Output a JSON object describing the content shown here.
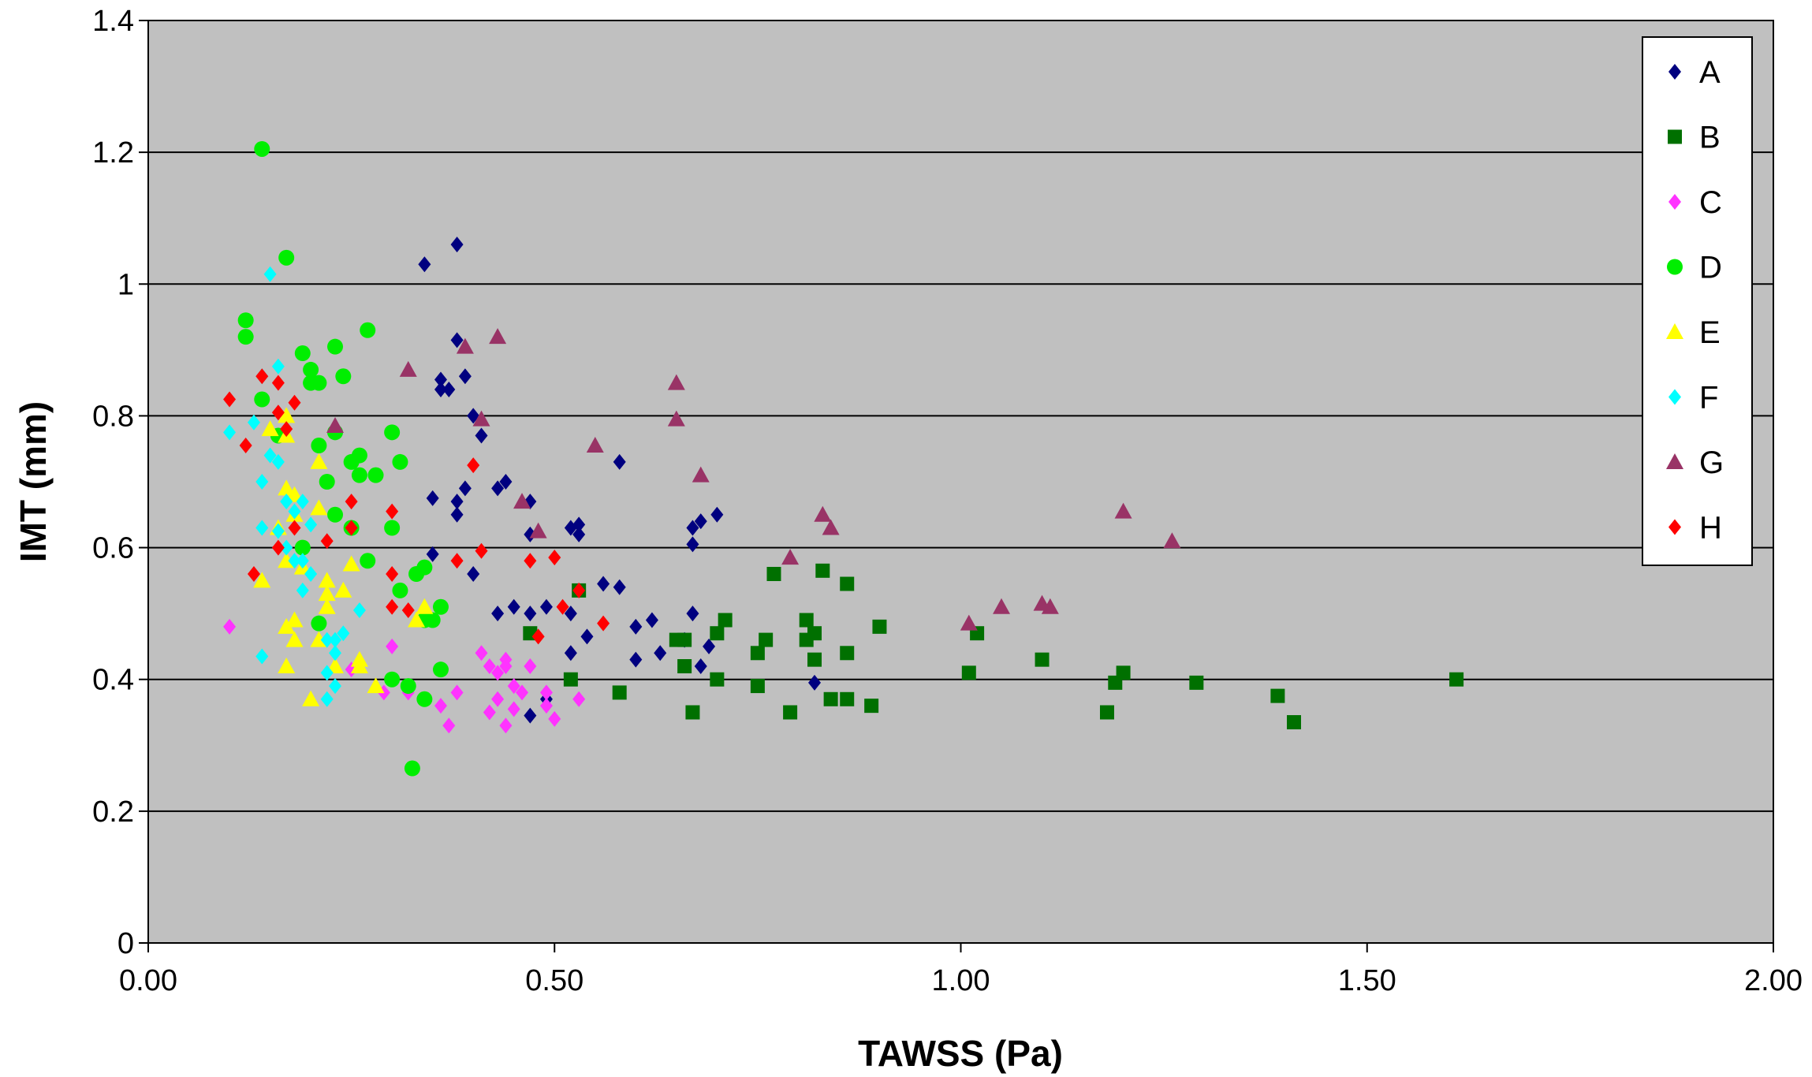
{
  "chart_data": {
    "type": "scatter",
    "title": "",
    "xlabel": "TAWSS (Pa)",
    "ylabel": "IMT (mm)",
    "xlim": [
      0,
      2
    ],
    "ylim": [
      0,
      1.4
    ],
    "x_ticks": [
      "0.00",
      "0.50",
      "1.00",
      "1.50",
      "2.00"
    ],
    "y_ticks": [
      "0",
      "0.2",
      "0.4",
      "0.6",
      "0.8",
      "1",
      "1.2",
      "1.4"
    ],
    "grid": "horizontal",
    "plot_background": "#c0c0c0",
    "legend_position": "top-right",
    "series": [
      {
        "name": "A",
        "color": "#000080",
        "marker": "diamond",
        "points": [
          [
            0.34,
            1.03
          ],
          [
            0.38,
            1.06
          ],
          [
            0.38,
            0.915
          ],
          [
            0.39,
            0.86
          ],
          [
            0.36,
            0.855
          ],
          [
            0.36,
            0.84
          ],
          [
            0.37,
            0.84
          ],
          [
            0.4,
            0.8
          ],
          [
            0.41,
            0.77
          ],
          [
            0.39,
            0.69
          ],
          [
            0.38,
            0.67
          ],
          [
            0.38,
            0.65
          ],
          [
            0.35,
            0.675
          ],
          [
            0.43,
            0.69
          ],
          [
            0.44,
            0.7
          ],
          [
            0.47,
            0.67
          ],
          [
            0.47,
            0.62
          ],
          [
            0.35,
            0.59
          ],
          [
            0.4,
            0.56
          ],
          [
            0.43,
            0.5
          ],
          [
            0.45,
            0.51
          ],
          [
            0.47,
            0.5
          ],
          [
            0.49,
            0.51
          ],
          [
            0.52,
            0.5
          ],
          [
            0.52,
            0.63
          ],
          [
            0.53,
            0.62
          ],
          [
            0.53,
            0.635
          ],
          [
            0.52,
            0.44
          ],
          [
            0.54,
            0.465
          ],
          [
            0.56,
            0.545
          ],
          [
            0.58,
            0.54
          ],
          [
            0.58,
            0.73
          ],
          [
            0.6,
            0.48
          ],
          [
            0.6,
            0.43
          ],
          [
            0.62,
            0.49
          ],
          [
            0.63,
            0.44
          ],
          [
            0.66,
            0.46
          ],
          [
            0.67,
            0.63
          ],
          [
            0.68,
            0.64
          ],
          [
            0.67,
            0.605
          ],
          [
            0.7,
            0.65
          ],
          [
            0.67,
            0.5
          ],
          [
            0.68,
            0.42
          ],
          [
            0.69,
            0.45
          ],
          [
            0.82,
            0.395
          ],
          [
            0.47,
            0.345
          ],
          [
            0.49,
            0.37
          ]
        ]
      },
      {
        "name": "B",
        "color": "#007000",
        "marker": "square",
        "points": [
          [
            0.47,
            0.47
          ],
          [
            0.52,
            0.4
          ],
          [
            0.53,
            0.535
          ],
          [
            0.58,
            0.38
          ],
          [
            0.65,
            0.46
          ],
          [
            0.66,
            0.46
          ],
          [
            0.66,
            0.42
          ],
          [
            0.67,
            0.35
          ],
          [
            0.7,
            0.4
          ],
          [
            0.7,
            0.47
          ],
          [
            0.71,
            0.49
          ],
          [
            0.75,
            0.39
          ],
          [
            0.75,
            0.44
          ],
          [
            0.76,
            0.46
          ],
          [
            0.77,
            0.56
          ],
          [
            0.79,
            0.35
          ],
          [
            0.81,
            0.49
          ],
          [
            0.81,
            0.46
          ],
          [
            0.82,
            0.47
          ],
          [
            0.82,
            0.43
          ],
          [
            0.83,
            0.565
          ],
          [
            0.84,
            0.37
          ],
          [
            0.86,
            0.545
          ],
          [
            0.86,
            0.44
          ],
          [
            0.86,
            0.37
          ],
          [
            0.89,
            0.36
          ],
          [
            0.9,
            0.48
          ],
          [
            1.01,
            0.41
          ],
          [
            1.02,
            0.47
          ],
          [
            1.1,
            0.43
          ],
          [
            1.18,
            0.35
          ],
          [
            1.19,
            0.395
          ],
          [
            1.2,
            0.41
          ],
          [
            1.29,
            0.395
          ],
          [
            1.39,
            0.375
          ],
          [
            1.41,
            0.335
          ],
          [
            1.61,
            0.4
          ]
        ]
      },
      {
        "name": "C",
        "color": "#ff33ff",
        "marker": "diamond",
        "points": [
          [
            0.1,
            0.48
          ],
          [
            0.25,
            0.415
          ],
          [
            0.29,
            0.38
          ],
          [
            0.3,
            0.45
          ],
          [
            0.32,
            0.38
          ],
          [
            0.36,
            0.36
          ],
          [
            0.37,
            0.33
          ],
          [
            0.38,
            0.38
          ],
          [
            0.41,
            0.44
          ],
          [
            0.42,
            0.35
          ],
          [
            0.43,
            0.37
          ],
          [
            0.43,
            0.41
          ],
          [
            0.44,
            0.43
          ],
          [
            0.44,
            0.42
          ],
          [
            0.44,
            0.33
          ],
          [
            0.45,
            0.39
          ],
          [
            0.45,
            0.355
          ],
          [
            0.46,
            0.38
          ],
          [
            0.47,
            0.42
          ],
          [
            0.49,
            0.36
          ],
          [
            0.49,
            0.38
          ],
          [
            0.5,
            0.34
          ],
          [
            0.53,
            0.37
          ],
          [
            0.42,
            0.42
          ]
        ]
      },
      {
        "name": "D",
        "color": "#00ee00",
        "marker": "circle",
        "points": [
          [
            0.14,
            1.205
          ],
          [
            0.17,
            1.04
          ],
          [
            0.12,
            0.945
          ],
          [
            0.12,
            0.92
          ],
          [
            0.27,
            0.93
          ],
          [
            0.19,
            0.895
          ],
          [
            0.23,
            0.905
          ],
          [
            0.2,
            0.87
          ],
          [
            0.24,
            0.86
          ],
          [
            0.2,
            0.85
          ],
          [
            0.21,
            0.85
          ],
          [
            0.14,
            0.825
          ],
          [
            0.16,
            0.77
          ],
          [
            0.21,
            0.755
          ],
          [
            0.23,
            0.775
          ],
          [
            0.26,
            0.74
          ],
          [
            0.25,
            0.73
          ],
          [
            0.3,
            0.775
          ],
          [
            0.22,
            0.7
          ],
          [
            0.26,
            0.71
          ],
          [
            0.28,
            0.71
          ],
          [
            0.31,
            0.73
          ],
          [
            0.23,
            0.65
          ],
          [
            0.25,
            0.63
          ],
          [
            0.3,
            0.63
          ],
          [
            0.19,
            0.6
          ],
          [
            0.27,
            0.58
          ],
          [
            0.31,
            0.535
          ],
          [
            0.33,
            0.56
          ],
          [
            0.34,
            0.57
          ],
          [
            0.36,
            0.51
          ],
          [
            0.34,
            0.49
          ],
          [
            0.35,
            0.49
          ],
          [
            0.21,
            0.485
          ],
          [
            0.3,
            0.4
          ],
          [
            0.32,
            0.39
          ],
          [
            0.34,
            0.37
          ],
          [
            0.36,
            0.415
          ],
          [
            0.325,
            0.265
          ]
        ]
      },
      {
        "name": "E",
        "color": "#ffff00",
        "marker": "triangle",
        "points": [
          [
            0.15,
            0.78
          ],
          [
            0.17,
            0.8
          ],
          [
            0.17,
            0.77
          ],
          [
            0.17,
            0.69
          ],
          [
            0.18,
            0.68
          ],
          [
            0.18,
            0.65
          ],
          [
            0.21,
            0.73
          ],
          [
            0.21,
            0.66
          ],
          [
            0.16,
            0.63
          ],
          [
            0.17,
            0.58
          ],
          [
            0.19,
            0.57
          ],
          [
            0.14,
            0.55
          ],
          [
            0.22,
            0.55
          ],
          [
            0.24,
            0.535
          ],
          [
            0.22,
            0.53
          ],
          [
            0.22,
            0.51
          ],
          [
            0.25,
            0.575
          ],
          [
            0.18,
            0.49
          ],
          [
            0.18,
            0.46
          ],
          [
            0.17,
            0.48
          ],
          [
            0.21,
            0.46
          ],
          [
            0.23,
            0.42
          ],
          [
            0.17,
            0.42
          ],
          [
            0.2,
            0.37
          ],
          [
            0.26,
            0.43
          ],
          [
            0.26,
            0.42
          ],
          [
            0.28,
            0.39
          ],
          [
            0.33,
            0.49
          ],
          [
            0.34,
            0.51
          ]
        ]
      },
      {
        "name": "F",
        "color": "#00ffff",
        "marker": "diamond",
        "points": [
          [
            0.15,
            1.015
          ],
          [
            0.16,
            0.875
          ],
          [
            0.1,
            0.775
          ],
          [
            0.13,
            0.79
          ],
          [
            0.14,
            0.86
          ],
          [
            0.15,
            0.74
          ],
          [
            0.16,
            0.73
          ],
          [
            0.14,
            0.7
          ],
          [
            0.17,
            0.67
          ],
          [
            0.18,
            0.655
          ],
          [
            0.19,
            0.67
          ],
          [
            0.14,
            0.63
          ],
          [
            0.16,
            0.625
          ],
          [
            0.17,
            0.6
          ],
          [
            0.18,
            0.58
          ],
          [
            0.19,
            0.58
          ],
          [
            0.19,
            0.535
          ],
          [
            0.2,
            0.56
          ],
          [
            0.2,
            0.635
          ],
          [
            0.26,
            0.505
          ],
          [
            0.14,
            0.435
          ],
          [
            0.22,
            0.46
          ],
          [
            0.23,
            0.46
          ],
          [
            0.23,
            0.44
          ],
          [
            0.24,
            0.47
          ],
          [
            0.22,
            0.41
          ],
          [
            0.23,
            0.39
          ],
          [
            0.22,
            0.37
          ]
        ]
      },
      {
        "name": "G",
        "color": "#993366",
        "marker": "triangle",
        "points": [
          [
            0.23,
            0.785
          ],
          [
            0.32,
            0.87
          ],
          [
            0.39,
            0.905
          ],
          [
            0.43,
            0.92
          ],
          [
            0.41,
            0.795
          ],
          [
            0.46,
            0.67
          ],
          [
            0.48,
            0.625
          ],
          [
            0.55,
            0.755
          ],
          [
            0.65,
            0.85
          ],
          [
            0.65,
            0.795
          ],
          [
            0.68,
            0.71
          ],
          [
            0.79,
            0.585
          ],
          [
            0.83,
            0.65
          ],
          [
            0.84,
            0.63
          ],
          [
            1.01,
            0.485
          ],
          [
            1.05,
            0.51
          ],
          [
            1.1,
            0.515
          ],
          [
            1.11,
            0.51
          ],
          [
            1.2,
            0.655
          ],
          [
            1.26,
            0.61
          ]
        ]
      },
      {
        "name": "H",
        "color": "#ff0000",
        "marker": "diamond",
        "points": [
          [
            0.1,
            0.825
          ],
          [
            0.14,
            0.86
          ],
          [
            0.16,
            0.85
          ],
          [
            0.18,
            0.82
          ],
          [
            0.16,
            0.805
          ],
          [
            0.12,
            0.755
          ],
          [
            0.17,
            0.78
          ],
          [
            0.25,
            0.67
          ],
          [
            0.18,
            0.63
          ],
          [
            0.16,
            0.6
          ],
          [
            0.22,
            0.61
          ],
          [
            0.25,
            0.63
          ],
          [
            0.3,
            0.655
          ],
          [
            0.13,
            0.56
          ],
          [
            0.3,
            0.56
          ],
          [
            0.3,
            0.51
          ],
          [
            0.32,
            0.505
          ],
          [
            0.38,
            0.58
          ],
          [
            0.4,
            0.725
          ],
          [
            0.41,
            0.595
          ],
          [
            0.47,
            0.58
          ],
          [
            0.5,
            0.585
          ],
          [
            0.51,
            0.51
          ],
          [
            0.53,
            0.535
          ],
          [
            0.56,
            0.485
          ],
          [
            0.48,
            0.465
          ]
        ]
      }
    ]
  }
}
